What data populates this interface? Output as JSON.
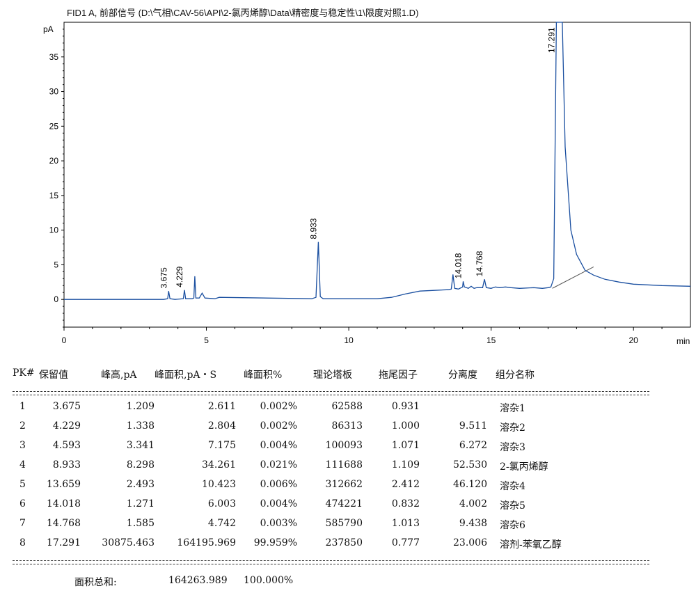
{
  "chart_data": {
    "type": "line",
    "title": "FID1 A, 前部信号 (D:\\气相\\CAV-56\\API\\2-氯丙烯醇\\Data\\精密度与稳定性\\1\\限度对照1.D)",
    "xlabel": "min",
    "ylabel": "pA",
    "xlim": [
      0,
      22
    ],
    "ylim": [
      -4,
      40
    ],
    "xticks": [
      0,
      5,
      10,
      15,
      20
    ],
    "yticks": [
      0,
      5,
      10,
      15,
      20,
      25,
      30,
      35
    ],
    "xtick_labels": [
      "0",
      "5",
      "10",
      "15",
      "20"
    ],
    "ytick_labels": [
      "0",
      "5",
      "10",
      "15",
      "20",
      "25",
      "30",
      "35"
    ],
    "grid": false,
    "line_color": "#1a4fa0",
    "baseline_color": "#555555",
    "labeled_peaks": [
      {
        "rt": 3.675,
        "height": 1.2,
        "label": "3.675"
      },
      {
        "rt": 4.229,
        "height": 1.35,
        "label": "4.229"
      },
      {
        "rt": 4.593,
        "height": 3.34,
        "label": ""
      },
      {
        "rt": 8.933,
        "height": 8.3,
        "label": "8.933"
      },
      {
        "rt": 13.659,
        "height": 3.6,
        "label": ""
      },
      {
        "rt": 14.018,
        "height": 2.6,
        "label": "14.018"
      },
      {
        "rt": 14.768,
        "height": 2.9,
        "label": "14.768"
      },
      {
        "rt": 17.291,
        "height": 40,
        "label": "17.291"
      }
    ],
    "series": [
      {
        "x": [
          0,
          3.5,
          3.64,
          3.675,
          3.72,
          3.9,
          4.19,
          4.229,
          4.27,
          4.5,
          4.56,
          4.593,
          4.63,
          4.75,
          4.85,
          4.95,
          5.3,
          5.45,
          8.7,
          8.85,
          8.933,
          9.0,
          9.1,
          10,
          11,
          11.5,
          12.0,
          12.5,
          13.0,
          13.5,
          13.6,
          13.659,
          13.72,
          13.85,
          14.0,
          14.018,
          14.06,
          14.2,
          14.3,
          14.4,
          14.5,
          14.7,
          14.768,
          14.83,
          15.0,
          15.15,
          15.3,
          15.5,
          15.7,
          16.0,
          16.5,
          16.8,
          17.0,
          17.1,
          17.2,
          17.291,
          17.5,
          17.6,
          17.8,
          18.0,
          18.3,
          18.6,
          19.0,
          19.5,
          20.0,
          21.0,
          22.0
        ],
        "y": [
          0,
          0,
          0.1,
          1.2,
          0.1,
          0,
          0.1,
          1.35,
          0.1,
          0.1,
          0.2,
          3.34,
          0.2,
          0.2,
          0.9,
          0.2,
          0.1,
          0.3,
          0.1,
          0.3,
          8.3,
          0.4,
          0.1,
          0.1,
          0.1,
          0.3,
          0.8,
          1.2,
          1.3,
          1.4,
          1.5,
          3.6,
          1.6,
          1.5,
          1.8,
          2.6,
          1.8,
          1.6,
          1.9,
          1.6,
          1.7,
          1.7,
          2.9,
          1.7,
          1.6,
          1.8,
          1.7,
          1.8,
          1.7,
          1.6,
          1.7,
          1.6,
          1.7,
          1.8,
          3.0,
          40,
          40,
          22,
          10,
          6.5,
          4.2,
          3.5,
          2.9,
          2.5,
          2.2,
          2.0,
          1.9
        ]
      }
    ],
    "baselines": [
      {
        "x1": 17.15,
        "y1": 1.6,
        "x2": 18.6,
        "y2": 4.7
      }
    ]
  },
  "table": {
    "headers": {
      "pk": "PK#",
      "rt": "保留值",
      "height": "峰高,pA",
      "area": "峰面积,pA・S",
      "area_pct": "峰面积%",
      "plates": "理论塔板",
      "tailing": "拖尾因子",
      "resolution": "分离度",
      "name": "组分名称"
    },
    "rows": [
      {
        "pk": "1",
        "rt": "3.675",
        "height": "1.209",
        "area": "2.611",
        "area_pct": "0.002%",
        "plates": "62588",
        "tailing": "0.931",
        "resolution": "",
        "name": "溶杂1"
      },
      {
        "pk": "2",
        "rt": "4.229",
        "height": "1.338",
        "area": "2.804",
        "area_pct": "0.002%",
        "plates": "86313",
        "tailing": "1.000",
        "resolution": "9.511",
        "name": "溶杂2"
      },
      {
        "pk": "3",
        "rt": "4.593",
        "height": "3.341",
        "area": "7.175",
        "area_pct": "0.004%",
        "plates": "100093",
        "tailing": "1.071",
        "resolution": "6.272",
        "name": "溶杂3"
      },
      {
        "pk": "4",
        "rt": "8.933",
        "height": "8.298",
        "area": "34.261",
        "area_pct": "0.021%",
        "plates": "111688",
        "tailing": "1.109",
        "resolution": "52.530",
        "name": "2-氯丙烯醇"
      },
      {
        "pk": "5",
        "rt": "13.659",
        "height": "2.493",
        "area": "10.423",
        "area_pct": "0.006%",
        "plates": "312662",
        "tailing": "2.412",
        "resolution": "46.120",
        "name": "溶杂4"
      },
      {
        "pk": "6",
        "rt": "14.018",
        "height": "1.271",
        "area": "6.003",
        "area_pct": "0.004%",
        "plates": "474221",
        "tailing": "0.832",
        "resolution": "4.002",
        "name": "溶杂5"
      },
      {
        "pk": "7",
        "rt": "14.768",
        "height": "1.585",
        "area": "4.742",
        "area_pct": "0.003%",
        "plates": "585790",
        "tailing": "1.013",
        "resolution": "9.438",
        "name": "溶杂6"
      },
      {
        "pk": "8",
        "rt": "17.291",
        "height": "30875.463",
        "area": "164195.969",
        "area_pct": "99.959%",
        "plates": "237850",
        "tailing": "0.777",
        "resolution": "23.006",
        "name": "溶剂-苯氧乙醇"
      }
    ],
    "total": {
      "label": "面积总和:",
      "area": "164263.989",
      "area_pct": "100.000%"
    }
  }
}
